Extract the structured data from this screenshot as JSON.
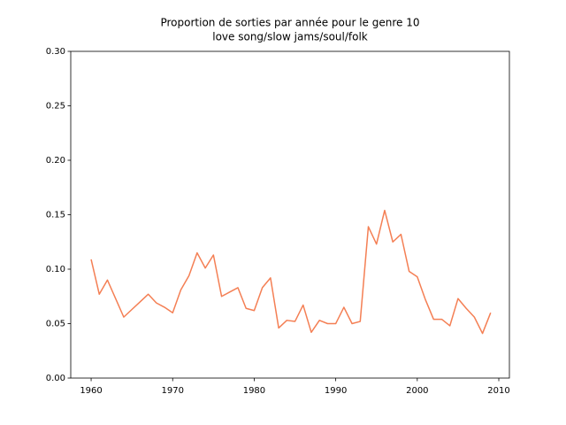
{
  "chart_data": {
    "type": "line",
    "title": [
      "Proportion de sorties par année pour le genre 10",
      "love song/slow jams/soul/folk"
    ],
    "x": [
      1960,
      1961,
      1962,
      1963,
      1964,
      1965,
      1966,
      1967,
      1968,
      1969,
      1970,
      1971,
      1972,
      1973,
      1974,
      1975,
      1976,
      1977,
      1978,
      1979,
      1980,
      1981,
      1982,
      1983,
      1984,
      1985,
      1986,
      1987,
      1988,
      1989,
      1990,
      1991,
      1992,
      1993,
      1994,
      1995,
      1996,
      1997,
      1998,
      1999,
      2000,
      2001,
      2002,
      2003,
      2004,
      2005,
      2006,
      2007,
      2008,
      2009
    ],
    "series": [
      {
        "color": "#f47f54",
        "values": [
          0.109,
          0.077,
          0.09,
          0.073,
          0.056,
          0.063,
          0.07,
          0.077,
          0.069,
          0.065,
          0.06,
          0.081,
          0.094,
          0.115,
          0.101,
          0.113,
          0.075,
          0.079,
          0.083,
          0.064,
          0.062,
          0.083,
          0.092,
          0.046,
          0.053,
          0.052,
          0.067,
          0.042,
          0.053,
          0.05,
          0.05,
          0.065,
          0.05,
          0.052,
          0.139,
          0.123,
          0.154,
          0.125,
          0.132,
          0.098,
          0.093,
          0.072,
          0.054,
          0.054,
          0.048,
          0.073,
          0.064,
          0.056,
          0.041,
          0.06
        ]
      }
    ],
    "xlim": [
      1957.5,
      2011.3
    ],
    "xticks": [
      1960,
      1970,
      1980,
      1990,
      2000,
      2010
    ],
    "ylim": [
      0,
      0.3
    ],
    "yticks": [
      {
        "value": 0,
        "label": "0.00"
      },
      {
        "value": 0.05,
        "label": "0.05"
      },
      {
        "value": 0.1,
        "label": "0.10"
      },
      {
        "value": 0.15,
        "label": "0.15"
      },
      {
        "value": 0.2,
        "label": "0.20"
      },
      {
        "value": 0.25,
        "label": "0.25"
      },
      {
        "value": 0.3,
        "label": "0.30"
      }
    ]
  }
}
